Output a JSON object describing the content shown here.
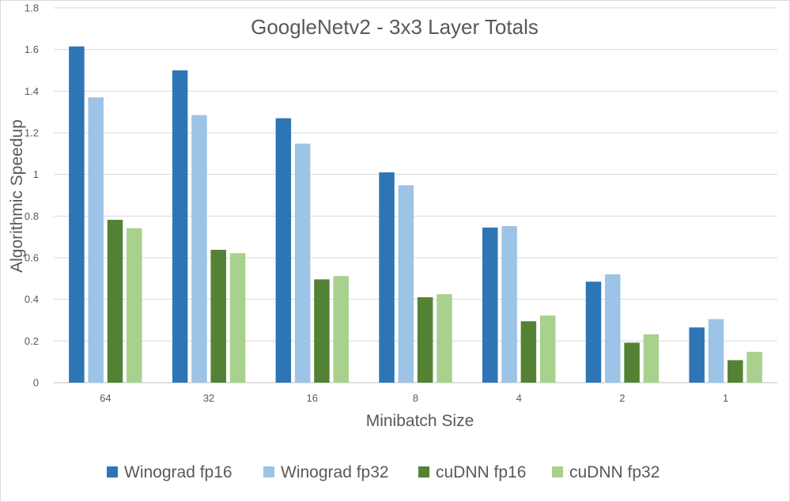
{
  "chart_data": {
    "type": "bar",
    "title": "GoogleNetv2 - 3x3 Layer Totals",
    "xlabel": "Minibatch Size",
    "ylabel": "Algorithmic Speedup",
    "categories": [
      "64",
      "32",
      "16",
      "8",
      "4",
      "2",
      "1"
    ],
    "ylim": [
      0,
      1.8
    ],
    "yticks": [
      "0",
      "0.2",
      "0.4",
      "0.6",
      "0.8",
      "1",
      "1.2",
      "1.4",
      "1.6",
      "1.8"
    ],
    "grid": true,
    "legend_position": "bottom",
    "series": [
      {
        "name": "Winograd fp16",
        "color": "#2e75b6",
        "values": [
          1.615,
          1.5,
          1.27,
          1.01,
          0.745,
          0.485,
          0.265
        ]
      },
      {
        "name": "Winograd fp32",
        "color": "#9dc3e6",
        "values": [
          1.37,
          1.285,
          1.148,
          0.948,
          0.752,
          0.52,
          0.305
        ]
      },
      {
        "name": "cuDNN fp16",
        "color": "#548235",
        "values": [
          0.782,
          0.638,
          0.496,
          0.41,
          0.295,
          0.192,
          0.108
        ]
      },
      {
        "name": "cuDNN fp32",
        "color": "#a9d18e",
        "values": [
          0.742,
          0.622,
          0.512,
          0.425,
          0.322,
          0.232,
          0.148
        ]
      }
    ]
  }
}
